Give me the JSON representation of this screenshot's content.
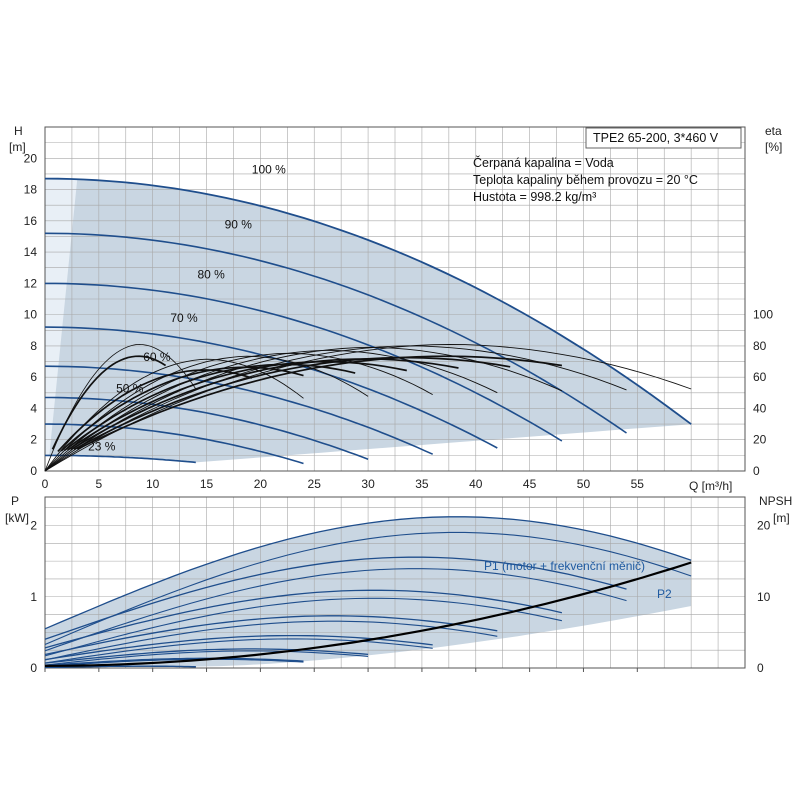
{
  "info": {
    "model": "TPE2 65-200, 3*460 V",
    "line1": "Čerpaná kapalina = Voda",
    "line2": "Teplota kapaliny během provozu = 20 °C",
    "line3": "Hustota = 998.2 kg/m³"
  },
  "colors": {
    "curve": "#1f4e8c",
    "region": "#c9d6e2",
    "grid": "#a8a8a8",
    "eta": "#111111"
  },
  "chart_data": [
    {
      "type": "line",
      "name": "head",
      "xlabel": "Q [m³/h]",
      "ylabel_left": [
        "H",
        "[m]"
      ],
      "ylabel_right": [
        "eta",
        "[%]"
      ],
      "xlim": [
        0,
        65
      ],
      "ylim": [
        0,
        22
      ],
      "x_ticks": [
        0,
        5,
        10,
        15,
        20,
        25,
        30,
        35,
        40,
        45,
        50,
        55
      ],
      "y_ticks": [
        0,
        2,
        4,
        6,
        8,
        10,
        12,
        14,
        16,
        18,
        20
      ],
      "eta_ticks": [
        0,
        20,
        40,
        60,
        80,
        100
      ],
      "eta_scale": "0–100 % maps to 0–10 m",
      "grid": true,
      "speed_curves": [
        {
          "label": "100 %",
          "H0": 18.7,
          "Qmax": 60
        },
        {
          "label": "90 %",
          "H0": 15.2,
          "Qmax": 54
        },
        {
          "label": "80 %",
          "H0": 12.0,
          "Qmax": 48
        },
        {
          "label": "70 %",
          "H0": 9.2,
          "Qmax": 42
        },
        {
          "label": "60 %",
          "H0": 6.7,
          "Qmax": 36
        },
        {
          "label": "50 %",
          "H0": 4.7,
          "Qmax": 30
        },
        {
          "label": "",
          "H0": 3.0,
          "Qmax": 24
        },
        {
          "label": "23 %",
          "H0": 1.0,
          "Qmax": 14
        }
      ],
      "eta_curves": [
        {
          "Qend": 60,
          "peak": 80
        },
        {
          "Qend": 54,
          "peak": 79
        },
        {
          "Qend": 48,
          "peak": 78
        },
        {
          "Qend": 42,
          "peak": 76
        },
        {
          "Qend": 36,
          "peak": 74
        },
        {
          "Qend": 30,
          "peak": 72
        },
        {
          "Qend": 24,
          "peak": 70
        },
        {
          "Qend": 14,
          "peak": 80
        }
      ]
    },
    {
      "type": "line",
      "name": "power",
      "xlim": [
        0,
        65
      ],
      "ylim": [
        0,
        2.4
      ],
      "ylabel_left": [
        "P",
        "[kW]"
      ],
      "ylabel_right": [
        "NPSH",
        "[m]"
      ],
      "y_ticks": [
        0,
        1,
        2
      ],
      "npsh_ticks": [
        0,
        10,
        20
      ],
      "grid": true,
      "series_labels": [
        "P1 (motor + frekvenční měnič)",
        "P2"
      ],
      "p1_max_kw": 2.15,
      "p1_end_kw": 1.65,
      "npsh_end_m": 14.5
    }
  ]
}
